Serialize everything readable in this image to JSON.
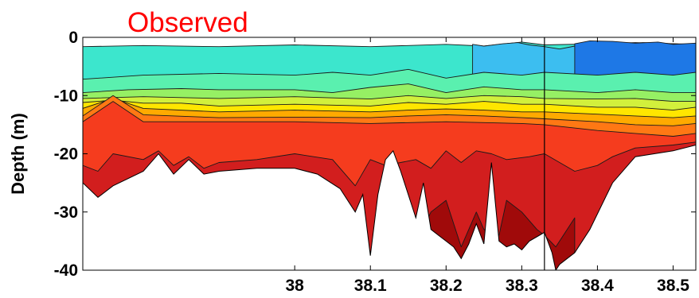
{
  "chart_data": {
    "type": "contour",
    "title": "Observed",
    "title_color": "#ff0000",
    "xlabel": "",
    "ylabel": "Depth (m)",
    "xlim": [
      37.72,
      38.53
    ],
    "ylim": [
      -40,
      0
    ],
    "x_ticks": [
      {
        "value": 38,
        "label": "38"
      },
      {
        "value": 38.1,
        "label": "38.1"
      },
      {
        "value": 38.2,
        "label": "38.2"
      },
      {
        "value": 38.3,
        "label": "38.3"
      },
      {
        "value": 38.4,
        "label": "38.4"
      },
      {
        "value": 38.5,
        "label": "38.5"
      }
    ],
    "y_ticks": [
      {
        "value": 0,
        "label": "0"
      },
      {
        "value": -10,
        "label": "-10"
      },
      {
        "value": -20,
        "label": "-20"
      },
      {
        "value": -30,
        "label": "-30"
      },
      {
        "value": -40,
        "label": "-40"
      }
    ],
    "vertical_line_x": 38.33,
    "grid": false,
    "colors": {
      "deep_blue": "#1e78e6",
      "light_blue": "#3cbef0",
      "cyan": "#3ce6cd",
      "aqua_green": "#5af0af",
      "green": "#96f064",
      "yellow_green": "#d2f03c",
      "yellow": "#ffe600",
      "orange_yellow": "#ffaa00",
      "orange": "#ff7814",
      "red_orange": "#f53c1e",
      "red": "#d21e1e",
      "dark_red": "#a00a0a"
    },
    "layers": [
      {
        "color_key": "cyan",
        "top": [
          [
            37.72,
            -1.6
          ],
          [
            37.8,
            -1.4
          ],
          [
            37.9,
            -1.6
          ],
          [
            38.0,
            -1.3
          ],
          [
            38.1,
            -1.6
          ],
          [
            38.2,
            -1.2
          ],
          [
            38.25,
            -1.5
          ],
          [
            38.3,
            -0.8
          ],
          [
            38.33,
            -1.3
          ],
          [
            38.4,
            -1.1
          ],
          [
            38.45,
            -0.9
          ],
          [
            38.53,
            -1.2
          ]
        ]
      },
      {
        "color_key": "light_blue",
        "top": [
          [
            38.235,
            -1.2
          ],
          [
            38.25,
            -1.5
          ],
          [
            38.275,
            -1.1
          ],
          [
            38.295,
            -0.9
          ],
          [
            38.31,
            -1.3
          ],
          [
            38.33,
            -1.6
          ],
          [
            38.35,
            -2.0
          ],
          [
            38.37,
            -1.5
          ],
          [
            38.4,
            -1.0
          ],
          [
            38.43,
            -1.2
          ],
          [
            38.46,
            -0.9
          ],
          [
            38.5,
            -1.1
          ],
          [
            38.53,
            -1.3
          ]
        ]
      },
      {
        "color_key": "deep_blue",
        "top": [
          [
            38.37,
            -1.1
          ],
          [
            38.39,
            -0.6
          ],
          [
            38.42,
            -0.7
          ],
          [
            38.45,
            -1.0
          ],
          [
            38.48,
            -0.8
          ],
          [
            38.5,
            -1.2
          ],
          [
            38.53,
            -1.0
          ]
        ]
      },
      {
        "color_key": "aqua_green",
        "top": [
          [
            37.72,
            -7.2
          ],
          [
            37.8,
            -6.5
          ],
          [
            37.9,
            -6.2
          ],
          [
            38.0,
            -6.5
          ],
          [
            38.05,
            -6.0
          ],
          [
            38.1,
            -6.5
          ],
          [
            38.15,
            -5.5
          ],
          [
            38.2,
            -7.0
          ],
          [
            38.25,
            -6.0
          ],
          [
            38.3,
            -6.5
          ],
          [
            38.33,
            -6.0
          ],
          [
            38.4,
            -6.5
          ],
          [
            38.45,
            -6.0
          ],
          [
            38.5,
            -6.5
          ],
          [
            38.53,
            -6.0
          ]
        ]
      },
      {
        "color_key": "green",
        "top": [
          [
            37.72,
            -9.5
          ],
          [
            37.78,
            -9.0
          ],
          [
            37.85,
            -8.8
          ],
          [
            37.9,
            -9.0
          ],
          [
            38.0,
            -9.0
          ],
          [
            38.05,
            -9.5
          ],
          [
            38.1,
            -8.6
          ],
          [
            38.15,
            -8.0
          ],
          [
            38.2,
            -9.5
          ],
          [
            38.25,
            -8.5
          ],
          [
            38.3,
            -9.0
          ],
          [
            38.33,
            -9.0
          ],
          [
            38.4,
            -9.5
          ],
          [
            38.45,
            -9.0
          ],
          [
            38.5,
            -9.5
          ],
          [
            38.53,
            -9.5
          ]
        ]
      },
      {
        "color_key": "yellow_green",
        "top": [
          [
            37.72,
            -10.5
          ],
          [
            37.8,
            -10.2
          ],
          [
            37.9,
            -10.5
          ],
          [
            38.0,
            -10.2
          ],
          [
            38.1,
            -10.6
          ],
          [
            38.15,
            -10.0
          ],
          [
            38.2,
            -10.5
          ],
          [
            38.25,
            -10.0
          ],
          [
            38.3,
            -10.2
          ],
          [
            38.33,
            -10.5
          ],
          [
            38.4,
            -10.6
          ],
          [
            38.45,
            -10.5
          ],
          [
            38.5,
            -11.0
          ],
          [
            38.53,
            -11.0
          ]
        ]
      },
      {
        "color_key": "yellow",
        "top": [
          [
            37.72,
            -11.2
          ],
          [
            37.76,
            -10.8
          ],
          [
            37.8,
            -11.3
          ],
          [
            37.85,
            -11.3
          ],
          [
            37.9,
            -11.8
          ],
          [
            38.0,
            -11.5
          ],
          [
            38.1,
            -11.8
          ],
          [
            38.15,
            -11.2
          ],
          [
            38.2,
            -11.5
          ],
          [
            38.25,
            -11.0
          ],
          [
            38.3,
            -11.5
          ],
          [
            38.33,
            -11.5
          ],
          [
            38.4,
            -12.0
          ],
          [
            38.45,
            -12.0
          ],
          [
            38.5,
            -12.5
          ],
          [
            38.53,
            -12.0
          ]
        ]
      },
      {
        "color_key": "orange_yellow",
        "top": [
          [
            37.72,
            -12.2
          ],
          [
            37.76,
            -10.5
          ],
          [
            37.8,
            -12.2
          ],
          [
            37.9,
            -12.8
          ],
          [
            38.0,
            -12.5
          ],
          [
            38.1,
            -12.8
          ],
          [
            38.15,
            -12.5
          ],
          [
            38.2,
            -12.3
          ],
          [
            38.25,
            -12.5
          ],
          [
            38.3,
            -12.8
          ],
          [
            38.33,
            -12.8
          ],
          [
            38.4,
            -13.2
          ],
          [
            38.45,
            -13.5
          ],
          [
            38.5,
            -13.8
          ],
          [
            38.53,
            -13.5
          ]
        ]
      },
      {
        "color_key": "orange",
        "top": [
          [
            37.72,
            -13.5
          ],
          [
            37.76,
            -10.0
          ],
          [
            37.8,
            -13.3
          ],
          [
            37.9,
            -13.8
          ],
          [
            38.0,
            -13.7
          ],
          [
            38.1,
            -13.8
          ],
          [
            38.15,
            -13.5
          ],
          [
            38.2,
            -13.3
          ],
          [
            38.25,
            -13.5
          ],
          [
            38.3,
            -13.8
          ],
          [
            38.33,
            -14.0
          ],
          [
            38.4,
            -14.5
          ],
          [
            38.45,
            -15.0
          ],
          [
            38.5,
            -15.2
          ],
          [
            38.53,
            -14.8
          ]
        ]
      },
      {
        "color_key": "red_orange",
        "top": [
          [
            37.72,
            -14.5
          ],
          [
            37.76,
            -11.0
          ],
          [
            37.8,
            -14.5
          ],
          [
            37.9,
            -14.5
          ],
          [
            38.0,
            -14.5
          ],
          [
            38.1,
            -14.8
          ],
          [
            38.2,
            -14.5
          ],
          [
            38.3,
            -14.8
          ],
          [
            38.33,
            -15.0
          ],
          [
            38.4,
            -16.0
          ],
          [
            38.45,
            -16.5
          ],
          [
            38.5,
            -17.0
          ],
          [
            38.53,
            -16.5
          ]
        ]
      },
      {
        "color_key": "red",
        "top": [
          [
            37.72,
            -22.0
          ],
          [
            37.74,
            -23.0
          ],
          [
            37.76,
            -20.0
          ],
          [
            37.8,
            -21.0
          ],
          [
            37.82,
            -19.5
          ],
          [
            37.84,
            -22.0
          ],
          [
            37.86,
            -20.5
          ],
          [
            37.88,
            -22.5
          ],
          [
            37.9,
            -21.5
          ],
          [
            37.95,
            -21.0
          ],
          [
            38.0,
            -20.0
          ],
          [
            38.05,
            -21.0
          ],
          [
            38.08,
            -25.5
          ],
          [
            38.1,
            -21.0
          ],
          [
            38.12,
            -22.0
          ],
          [
            38.16,
            -21.0
          ],
          [
            38.18,
            -22.5
          ],
          [
            38.2,
            -19.5
          ],
          [
            38.22,
            -21.5
          ],
          [
            38.24,
            -19.5
          ],
          [
            38.26,
            -20.0
          ],
          [
            38.28,
            -21.0
          ],
          [
            38.31,
            -20.5
          ],
          [
            38.33,
            -20.0
          ],
          [
            38.35,
            -21.5
          ],
          [
            38.37,
            -23.0
          ],
          [
            38.4,
            -22.0
          ],
          [
            38.42,
            -20.5
          ],
          [
            38.45,
            -19.0
          ],
          [
            38.5,
            -18.5
          ],
          [
            38.53,
            -18.0
          ]
        ]
      },
      {
        "color_key": "dark_red",
        "top": [
          [
            38.09,
            -32.0
          ],
          [
            38.1,
            -37.0
          ],
          [
            38.11,
            -32.0
          ],
          [
            38.14,
            -30.0
          ],
          [
            38.165,
            -34.0
          ],
          [
            38.18,
            -30.0
          ],
          [
            38.2,
            -28.0
          ],
          [
            38.22,
            -36.0
          ],
          [
            38.24,
            -30.0
          ],
          [
            38.25,
            -33.0
          ],
          [
            38.27,
            -34.0
          ],
          [
            38.28,
            -28.0
          ],
          [
            38.3,
            -30.0
          ],
          [
            38.32,
            -33.0
          ],
          [
            38.33,
            -34.0
          ],
          [
            38.345,
            -36.0
          ],
          [
            38.36,
            -33.0
          ],
          [
            38.37,
            -31.0
          ]
        ]
      }
    ],
    "bottom": [
      [
        37.72,
        -25.0
      ],
      [
        37.74,
        -27.5
      ],
      [
        37.76,
        -25.5
      ],
      [
        37.8,
        -23.0
      ],
      [
        37.82,
        -20.0
      ],
      [
        37.84,
        -23.5
      ],
      [
        37.86,
        -21.0
      ],
      [
        37.88,
        -23.5
      ],
      [
        37.9,
        -23.0
      ],
      [
        37.95,
        -22.5
      ],
      [
        38.0,
        -22.5
      ],
      [
        38.03,
        -23.5
      ],
      [
        38.06,
        -26.0
      ],
      [
        38.08,
        -30.0
      ],
      [
        38.09,
        -27.0
      ],
      [
        38.1,
        -37.5
      ],
      [
        38.11,
        -27.0
      ],
      [
        38.12,
        -21.0
      ],
      [
        38.13,
        -19.5
      ],
      [
        38.14,
        -23.0
      ],
      [
        38.16,
        -31.0
      ],
      [
        38.17,
        -25.0
      ],
      [
        38.18,
        -33.0
      ],
      [
        38.19,
        -34.0
      ],
      [
        38.2,
        -35.0
      ],
      [
        38.21,
        -36.0
      ],
      [
        38.22,
        -38.0
      ],
      [
        38.23,
        -35.5
      ],
      [
        38.24,
        -32.0
      ],
      [
        38.25,
        -35.5
      ],
      [
        38.26,
        -21.5
      ],
      [
        38.27,
        -35.0
      ],
      [
        38.28,
        -36.0
      ],
      [
        38.29,
        -35.5
      ],
      [
        38.3,
        -36.5
      ],
      [
        38.31,
        -35.0
      ],
      [
        38.33,
        -33.5
      ],
      [
        38.34,
        -37.0
      ],
      [
        38.345,
        -40.0
      ],
      [
        38.35,
        -39.0
      ],
      [
        38.37,
        -37.0
      ],
      [
        38.39,
        -33.0
      ],
      [
        38.42,
        -25.0
      ],
      [
        38.45,
        -20.5
      ],
      [
        38.5,
        -19.5
      ],
      [
        38.53,
        -18.5
      ]
    ]
  }
}
